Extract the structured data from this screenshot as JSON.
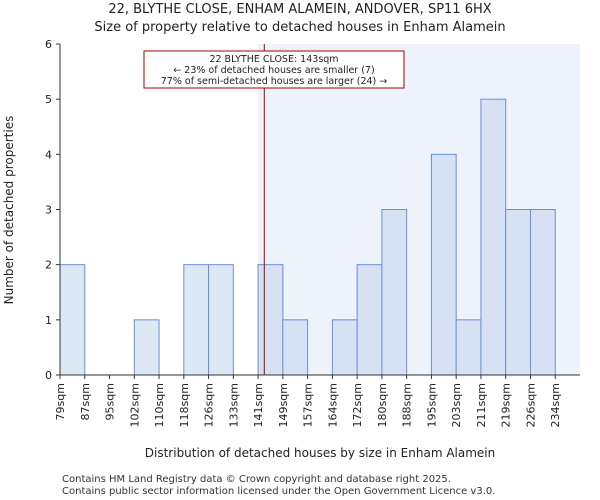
{
  "chart_data": {
    "type": "bar",
    "title": "22, BLYTHE CLOSE, ENHAM ALAMEIN, ANDOVER, SP11 6HX",
    "subtitle": "Size of property relative to detached houses in Enham Alamein",
    "xlabel": "Distribution of detached houses by size in Enham Alamein",
    "ylabel": "Number of detached properties",
    "categories": [
      "79sqm",
      "87sqm",
      "95sqm",
      "102sqm",
      "110sqm",
      "118sqm",
      "126sqm",
      "133sqm",
      "141sqm",
      "149sqm",
      "157sqm",
      "164sqm",
      "172sqm",
      "180sqm",
      "188sqm",
      "195sqm",
      "203sqm",
      "211sqm",
      "219sqm",
      "226sqm",
      "234sqm"
    ],
    "values": [
      2,
      0,
      0,
      1,
      0,
      2,
      2,
      0,
      2,
      1,
      0,
      1,
      2,
      3,
      0,
      4,
      1,
      5,
      3,
      3,
      0
    ],
    "ylim": [
      0,
      6
    ],
    "yticks": [
      0,
      1,
      2,
      3,
      4,
      5,
      6
    ],
    "property_marker_bin_position": 8.25,
    "highlight_start_bin": 8,
    "annotation": {
      "line1": "22 BLYTHE CLOSE: 143sqm",
      "line2": "← 23% of detached houses are smaller (7)",
      "line3": "77% of semi-detached houses are larger (24) →"
    },
    "colors": {
      "bar_fill": "#dde8f5",
      "bar_fill_highlight": "#d6e2f3",
      "bar_stroke": "#6b8fd6",
      "highlight_region": "#eef2fb",
      "marker": "#aa0000"
    }
  },
  "footer": {
    "line1": "Contains HM Land Registry data © Crown copyright and database right 2025.",
    "line2": "Contains public sector information licensed under the Open Government Licence v3.0."
  }
}
